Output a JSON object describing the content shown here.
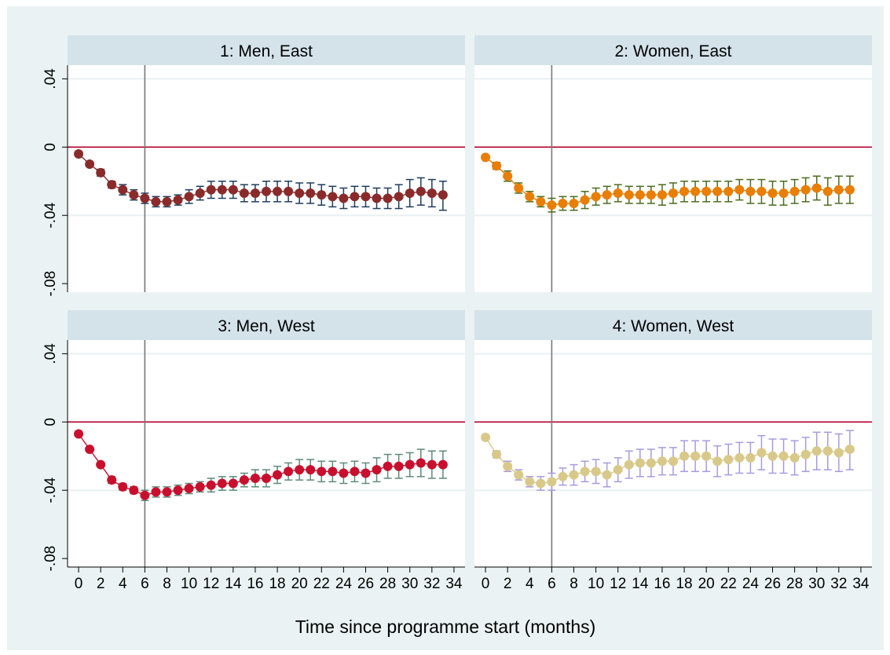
{
  "chart_data": {
    "type": "scatter",
    "layout": "2x2 small multiples with shared axes",
    "xlabel": "Time since programme start (months)",
    "ylabel": "",
    "xlim": [
      -1,
      35
    ],
    "ylim": [
      -0.085,
      0.048
    ],
    "x_ticks": [
      0,
      2,
      4,
      6,
      8,
      10,
      12,
      14,
      16,
      18,
      20,
      22,
      24,
      26,
      28,
      30,
      32,
      34
    ],
    "x_tick_labels": [
      "0",
      "2",
      "4",
      "6",
      "8",
      "10",
      "12",
      "14",
      "16",
      "18",
      "20",
      "22",
      "24",
      "26",
      "28",
      "30",
      "32",
      "34"
    ],
    "y_ticks": [
      0.04,
      0,
      -0.04,
      -0.08
    ],
    "y_tick_labels": [
      ".04",
      "0",
      "-.04",
      "-.08"
    ],
    "grid": "horizontal gridlines at 0.04 and -0.04",
    "reference_lines": {
      "horizontal_y": 0,
      "horizontal_color": "#b3002d",
      "vertical_x": 6,
      "vertical_color": "#777777"
    },
    "panels": [
      {
        "title": "1: Men, East",
        "marker_color": "#8a2b2b",
        "ci_color": "#1f3d5c",
        "x": [
          0,
          1,
          2,
          3,
          4,
          5,
          6,
          7,
          8,
          9,
          10,
          11,
          12,
          13,
          14,
          15,
          16,
          17,
          18,
          19,
          20,
          21,
          22,
          23,
          24,
          25,
          26,
          27,
          28,
          29,
          30,
          31,
          32,
          33
        ],
        "values": [
          -0.004,
          -0.01,
          -0.015,
          -0.022,
          -0.025,
          -0.028,
          -0.03,
          -0.032,
          -0.032,
          -0.031,
          -0.029,
          -0.027,
          -0.025,
          -0.025,
          -0.025,
          -0.027,
          -0.027,
          -0.026,
          -0.026,
          -0.026,
          -0.027,
          -0.027,
          -0.028,
          -0.029,
          -0.03,
          -0.029,
          -0.029,
          -0.03,
          -0.03,
          -0.029,
          -0.027,
          -0.026,
          -0.027,
          -0.028
        ],
        "ci_lower": [
          -0.005,
          -0.011,
          -0.017,
          -0.024,
          -0.028,
          -0.031,
          -0.033,
          -0.035,
          -0.035,
          -0.034,
          -0.033,
          -0.031,
          -0.03,
          -0.03,
          -0.03,
          -0.032,
          -0.032,
          -0.032,
          -0.032,
          -0.032,
          -0.033,
          -0.033,
          -0.034,
          -0.035,
          -0.036,
          -0.035,
          -0.035,
          -0.036,
          -0.036,
          -0.036,
          -0.035,
          -0.034,
          -0.035,
          -0.037
        ],
        "ci_upper": [
          -0.003,
          -0.009,
          -0.013,
          -0.02,
          -0.022,
          -0.025,
          -0.027,
          -0.029,
          -0.029,
          -0.028,
          -0.025,
          -0.023,
          -0.02,
          -0.02,
          -0.02,
          -0.022,
          -0.022,
          -0.02,
          -0.02,
          -0.02,
          -0.021,
          -0.021,
          -0.022,
          -0.023,
          -0.024,
          -0.023,
          -0.023,
          -0.024,
          -0.024,
          -0.022,
          -0.019,
          -0.018,
          -0.019,
          -0.02
        ]
      },
      {
        "title": "2: Women, East",
        "marker_color": "#e87e04",
        "ci_color": "#4a6b1e",
        "x": [
          0,
          1,
          2,
          3,
          4,
          5,
          6,
          7,
          8,
          9,
          10,
          11,
          12,
          13,
          14,
          15,
          16,
          17,
          18,
          19,
          20,
          21,
          22,
          23,
          24,
          25,
          26,
          27,
          28,
          29,
          30,
          31,
          32,
          33
        ],
        "values": [
          -0.006,
          -0.011,
          -0.017,
          -0.024,
          -0.029,
          -0.032,
          -0.034,
          -0.033,
          -0.033,
          -0.031,
          -0.029,
          -0.028,
          -0.027,
          -0.028,
          -0.028,
          -0.028,
          -0.028,
          -0.027,
          -0.026,
          -0.026,
          -0.026,
          -0.026,
          -0.026,
          -0.025,
          -0.026,
          -0.026,
          -0.027,
          -0.027,
          -0.026,
          -0.025,
          -0.024,
          -0.026,
          -0.025,
          -0.025
        ],
        "ci_lower": [
          -0.007,
          -0.013,
          -0.02,
          -0.027,
          -0.032,
          -0.035,
          -0.038,
          -0.037,
          -0.037,
          -0.036,
          -0.034,
          -0.033,
          -0.032,
          -0.033,
          -0.033,
          -0.033,
          -0.034,
          -0.033,
          -0.032,
          -0.032,
          -0.032,
          -0.032,
          -0.032,
          -0.031,
          -0.033,
          -0.033,
          -0.034,
          -0.034,
          -0.033,
          -0.032,
          -0.031,
          -0.034,
          -0.033,
          -0.033
        ],
        "ci_upper": [
          -0.005,
          -0.009,
          -0.014,
          -0.021,
          -0.026,
          -0.029,
          -0.03,
          -0.029,
          -0.029,
          -0.026,
          -0.024,
          -0.023,
          -0.022,
          -0.023,
          -0.023,
          -0.023,
          -0.022,
          -0.021,
          -0.02,
          -0.02,
          -0.02,
          -0.02,
          -0.02,
          -0.019,
          -0.019,
          -0.019,
          -0.02,
          -0.02,
          -0.019,
          -0.018,
          -0.017,
          -0.018,
          -0.017,
          -0.017
        ]
      },
      {
        "title": "3: Men, West",
        "marker_color": "#c8102e",
        "ci_color": "#5f8a78",
        "x": [
          0,
          1,
          2,
          3,
          4,
          5,
          6,
          7,
          8,
          9,
          10,
          11,
          12,
          13,
          14,
          15,
          16,
          17,
          18,
          19,
          20,
          21,
          22,
          23,
          24,
          25,
          26,
          27,
          28,
          29,
          30,
          31,
          32,
          33
        ],
        "values": [
          -0.007,
          -0.016,
          -0.025,
          -0.034,
          -0.038,
          -0.04,
          -0.043,
          -0.041,
          -0.041,
          -0.04,
          -0.039,
          -0.038,
          -0.037,
          -0.036,
          -0.036,
          -0.034,
          -0.033,
          -0.033,
          -0.031,
          -0.029,
          -0.028,
          -0.028,
          -0.029,
          -0.029,
          -0.03,
          -0.029,
          -0.03,
          -0.028,
          -0.026,
          -0.026,
          -0.025,
          -0.024,
          -0.025,
          -0.025
        ],
        "ci_lower": [
          -0.008,
          -0.017,
          -0.026,
          -0.036,
          -0.04,
          -0.042,
          -0.046,
          -0.044,
          -0.044,
          -0.043,
          -0.042,
          -0.041,
          -0.041,
          -0.04,
          -0.04,
          -0.038,
          -0.038,
          -0.038,
          -0.036,
          -0.034,
          -0.034,
          -0.034,
          -0.035,
          -0.035,
          -0.036,
          -0.035,
          -0.036,
          -0.035,
          -0.033,
          -0.033,
          -0.032,
          -0.032,
          -0.033,
          -0.033
        ],
        "ci_upper": [
          -0.006,
          -0.015,
          -0.024,
          -0.032,
          -0.036,
          -0.038,
          -0.04,
          -0.038,
          -0.038,
          -0.037,
          -0.036,
          -0.035,
          -0.033,
          -0.032,
          -0.032,
          -0.03,
          -0.028,
          -0.028,
          -0.026,
          -0.024,
          -0.022,
          -0.022,
          -0.023,
          -0.023,
          -0.024,
          -0.023,
          -0.024,
          -0.021,
          -0.019,
          -0.019,
          -0.018,
          -0.016,
          -0.017,
          -0.017
        ]
      },
      {
        "title": "4: Women, West",
        "marker_color": "#d8c98a",
        "ci_color": "#a69be0",
        "x": [
          0,
          1,
          2,
          3,
          4,
          5,
          6,
          7,
          8,
          9,
          10,
          11,
          12,
          13,
          14,
          15,
          16,
          17,
          18,
          19,
          20,
          21,
          22,
          23,
          24,
          25,
          26,
          27,
          28,
          29,
          30,
          31,
          32,
          33
        ],
        "values": [
          -0.009,
          -0.019,
          -0.026,
          -0.031,
          -0.035,
          -0.036,
          -0.035,
          -0.032,
          -0.031,
          -0.029,
          -0.029,
          -0.031,
          -0.028,
          -0.025,
          -0.024,
          -0.024,
          -0.023,
          -0.023,
          -0.02,
          -0.02,
          -0.02,
          -0.023,
          -0.022,
          -0.021,
          -0.021,
          -0.018,
          -0.02,
          -0.02,
          -0.021,
          -0.019,
          -0.017,
          -0.017,
          -0.018,
          -0.016
        ],
        "ci_lower": [
          -0.01,
          -0.021,
          -0.029,
          -0.034,
          -0.038,
          -0.04,
          -0.04,
          -0.037,
          -0.037,
          -0.035,
          -0.036,
          -0.038,
          -0.035,
          -0.033,
          -0.032,
          -0.032,
          -0.031,
          -0.031,
          -0.029,
          -0.029,
          -0.029,
          -0.032,
          -0.031,
          -0.03,
          -0.03,
          -0.028,
          -0.03,
          -0.03,
          -0.031,
          -0.029,
          -0.028,
          -0.028,
          -0.029,
          -0.028
        ],
        "ci_upper": [
          -0.008,
          -0.017,
          -0.023,
          -0.028,
          -0.032,
          -0.032,
          -0.03,
          -0.027,
          -0.025,
          -0.023,
          -0.022,
          -0.024,
          -0.021,
          -0.017,
          -0.016,
          -0.016,
          -0.015,
          -0.015,
          -0.011,
          -0.011,
          -0.011,
          -0.014,
          -0.013,
          -0.012,
          -0.012,
          -0.008,
          -0.01,
          -0.01,
          -0.011,
          -0.009,
          -0.006,
          -0.006,
          -0.007,
          -0.005
        ]
      }
    ]
  }
}
